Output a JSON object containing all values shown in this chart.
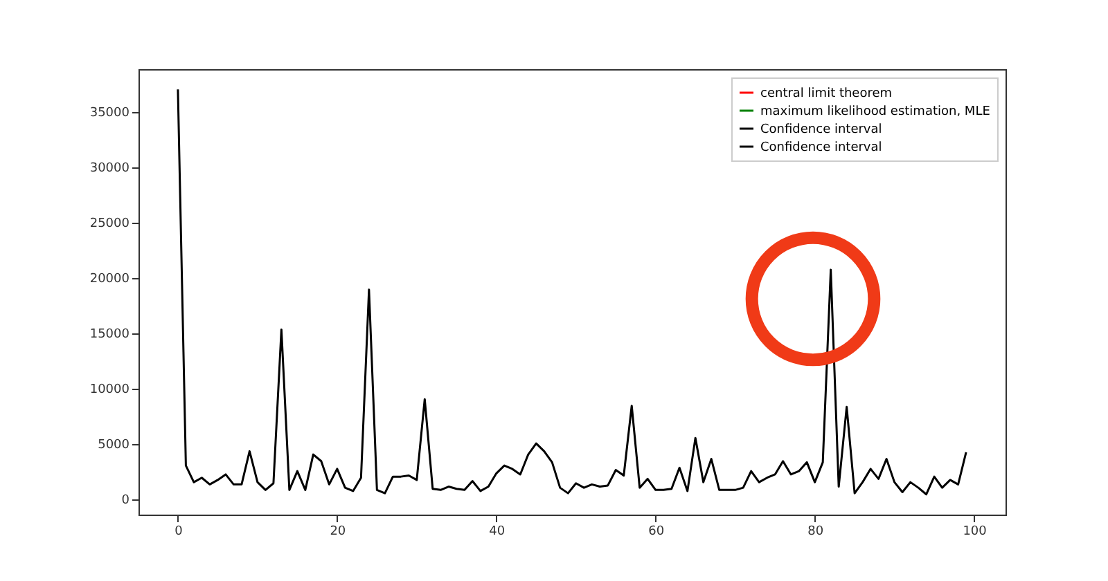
{
  "chart_data": {
    "type": "line",
    "x": [
      0,
      1,
      2,
      3,
      4,
      5,
      6,
      7,
      8,
      9,
      10,
      11,
      12,
      13,
      14,
      15,
      16,
      17,
      18,
      19,
      20,
      21,
      22,
      23,
      24,
      25,
      26,
      27,
      28,
      29,
      30,
      31,
      32,
      33,
      34,
      35,
      36,
      37,
      38,
      39,
      40,
      41,
      42,
      43,
      44,
      45,
      46,
      47,
      48,
      49,
      50,
      51,
      52,
      53,
      54,
      55,
      56,
      57,
      58,
      59,
      60,
      61,
      62,
      63,
      64,
      65,
      66,
      67,
      68,
      69,
      70,
      71,
      72,
      73,
      74,
      75,
      76,
      77,
      78,
      79,
      80,
      81,
      82,
      83,
      84,
      85,
      86,
      87,
      88,
      89,
      90,
      91,
      92,
      93,
      94,
      95,
      96,
      97,
      98,
      99
    ],
    "series": [
      {
        "name": "central limit theorem",
        "color": "#ff0000",
        "values": [
          null,
          null,
          null,
          null,
          null,
          null,
          null,
          null,
          null,
          null,
          null,
          null,
          null,
          null,
          null,
          null,
          null,
          null,
          null,
          null,
          null,
          null,
          null,
          null,
          null,
          null,
          null,
          null,
          null,
          null,
          null,
          null,
          null,
          null,
          null,
          null,
          null,
          null,
          null,
          null,
          null,
          null,
          null,
          null,
          null,
          null,
          null,
          null,
          null,
          null,
          null,
          null,
          null,
          null,
          null,
          null,
          null,
          null,
          null,
          null,
          null,
          null,
          null,
          null,
          null,
          null,
          null,
          null,
          null,
          null,
          null,
          null,
          null,
          null,
          null,
          null,
          null,
          null,
          null,
          null,
          null,
          null,
          null,
          null,
          null,
          null,
          null,
          null,
          null,
          null,
          null,
          null,
          null,
          null,
          null,
          null,
          null,
          null,
          null,
          null
        ]
      },
      {
        "name": "maximum likelihood estimation, MLE",
        "color": "#008000",
        "values": [
          null,
          null,
          null,
          null,
          null,
          null,
          null,
          null,
          null,
          null,
          null,
          null,
          null,
          null,
          null,
          null,
          null,
          null,
          null,
          null,
          null,
          null,
          null,
          null,
          null,
          null,
          null,
          null,
          null,
          null,
          null,
          null,
          null,
          null,
          null,
          null,
          null,
          null,
          null,
          null,
          null,
          null,
          null,
          null,
          null,
          null,
          null,
          null,
          null,
          null,
          null,
          null,
          null,
          null,
          null,
          null,
          null,
          null,
          null,
          null,
          null,
          null,
          null,
          null,
          null,
          null,
          null,
          null,
          null,
          null,
          null,
          null,
          null,
          null,
          null,
          null,
          null,
          null,
          null,
          null,
          null,
          null,
          null,
          null,
          null,
          null,
          null,
          null,
          null,
          null,
          null,
          null,
          null,
          null,
          null,
          null,
          null,
          null,
          null,
          null
        ]
      },
      {
        "name": "Confidence interval",
        "color": "#000000",
        "values": [
          37000,
          3000,
          1500,
          1900,
          1300,
          1700,
          2200,
          1300,
          1300,
          4300,
          1500,
          800,
          1400,
          15300,
          800,
          2500,
          800,
          4000,
          3400,
          1300,
          2700,
          1000,
          700,
          1900,
          18900,
          800,
          500,
          2000,
          2000,
          2100,
          1700,
          9000,
          900,
          800,
          1100,
          900,
          800,
          1600,
          700,
          1100,
          2300,
          3000,
          2700,
          2200,
          4000,
          5000,
          4300,
          3300,
          1000,
          500,
          1400,
          1000,
          1300,
          1100,
          1200,
          2600,
          2100,
          8400,
          1000,
          1800,
          800,
          800,
          900,
          2800,
          700,
          5500,
          1500,
          3600,
          800,
          800,
          800,
          1000,
          2500,
          1500,
          1900,
          2200,
          3400,
          2200,
          2500,
          3300,
          1500,
          3300,
          20700,
          1100,
          8300,
          500,
          1500,
          2700,
          1800,
          3600,
          1500,
          600,
          1500,
          1000,
          400,
          2000,
          1000,
          1700,
          1300,
          4200
        ]
      },
      {
        "name": "Confidence interval",
        "color": "#000000",
        "values": [
          null,
          null,
          null,
          null,
          null,
          null,
          null,
          null,
          null,
          null,
          null,
          null,
          null,
          null,
          null,
          null,
          null,
          null,
          null,
          null,
          null,
          null,
          null,
          null,
          null,
          null,
          null,
          null,
          null,
          null,
          null,
          null,
          null,
          null,
          null,
          null,
          null,
          null,
          null,
          null,
          null,
          null,
          null,
          null,
          null,
          null,
          null,
          null,
          null,
          null,
          null,
          null,
          null,
          null,
          null,
          null,
          null,
          null,
          null,
          null,
          null,
          null,
          null,
          null,
          null,
          null,
          null,
          null,
          null,
          null,
          null,
          null,
          null,
          null,
          null,
          null,
          null,
          null,
          null,
          null,
          null,
          null,
          null,
          null,
          null,
          null,
          null,
          null,
          null,
          null,
          null,
          null,
          null,
          null,
          null,
          null,
          null,
          null,
          null,
          null
        ]
      }
    ],
    "xlim": [
      -4.95,
      103.95
    ],
    "ylim": [
      -1430,
      38830
    ],
    "xticks": [
      0,
      20,
      40,
      60,
      80,
      100
    ],
    "yticks": [
      0,
      5000,
      10000,
      15000,
      20000,
      25000,
      30000,
      35000
    ],
    "grid": false,
    "legend": "top right",
    "marker": "none",
    "line_style": "solid"
  }
}
